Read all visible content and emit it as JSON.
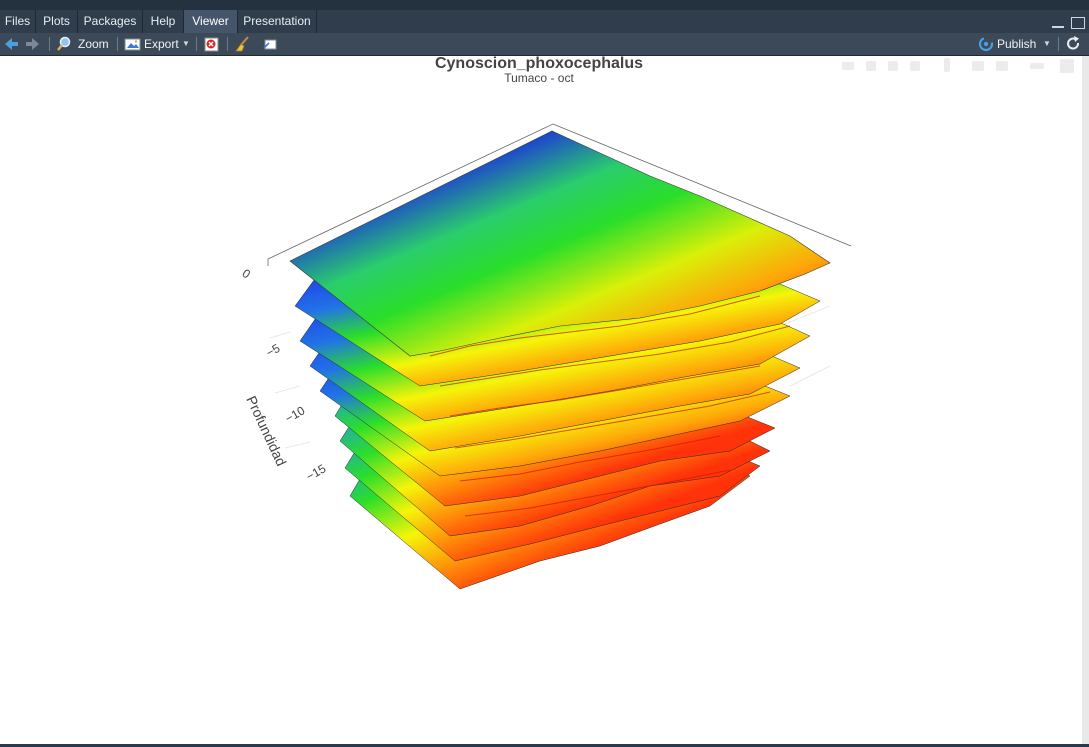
{
  "tabs": [
    {
      "label": "Files",
      "active": false
    },
    {
      "label": "Plots",
      "active": false
    },
    {
      "label": "Packages",
      "active": false
    },
    {
      "label": "Help",
      "active": false
    },
    {
      "label": "Viewer",
      "active": true
    },
    {
      "label": "Presentation",
      "active": false
    }
  ],
  "toolbar": {
    "zoom_label": "Zoom",
    "export_label": "Export",
    "publish_label": "Publish"
  },
  "plot": {
    "title": "Cynoscion_phoxocephalus",
    "subtitle": "Tumaco - oct",
    "z_axis_label": "Profundidad",
    "z_ticks": [
      "0",
      "−5",
      "−10",
      "−15"
    ]
  },
  "colors": {
    "tab_bg": "#2f3d4c",
    "tab_active": "#46566a",
    "toolbar_bg": "#3b4958",
    "arrow_blue": "#4a9fe0",
    "surface_low": "#1010ee",
    "surface_mid": "#22dd22",
    "surface_high": "#f5f500",
    "surface_max": "#ff2a00"
  }
}
